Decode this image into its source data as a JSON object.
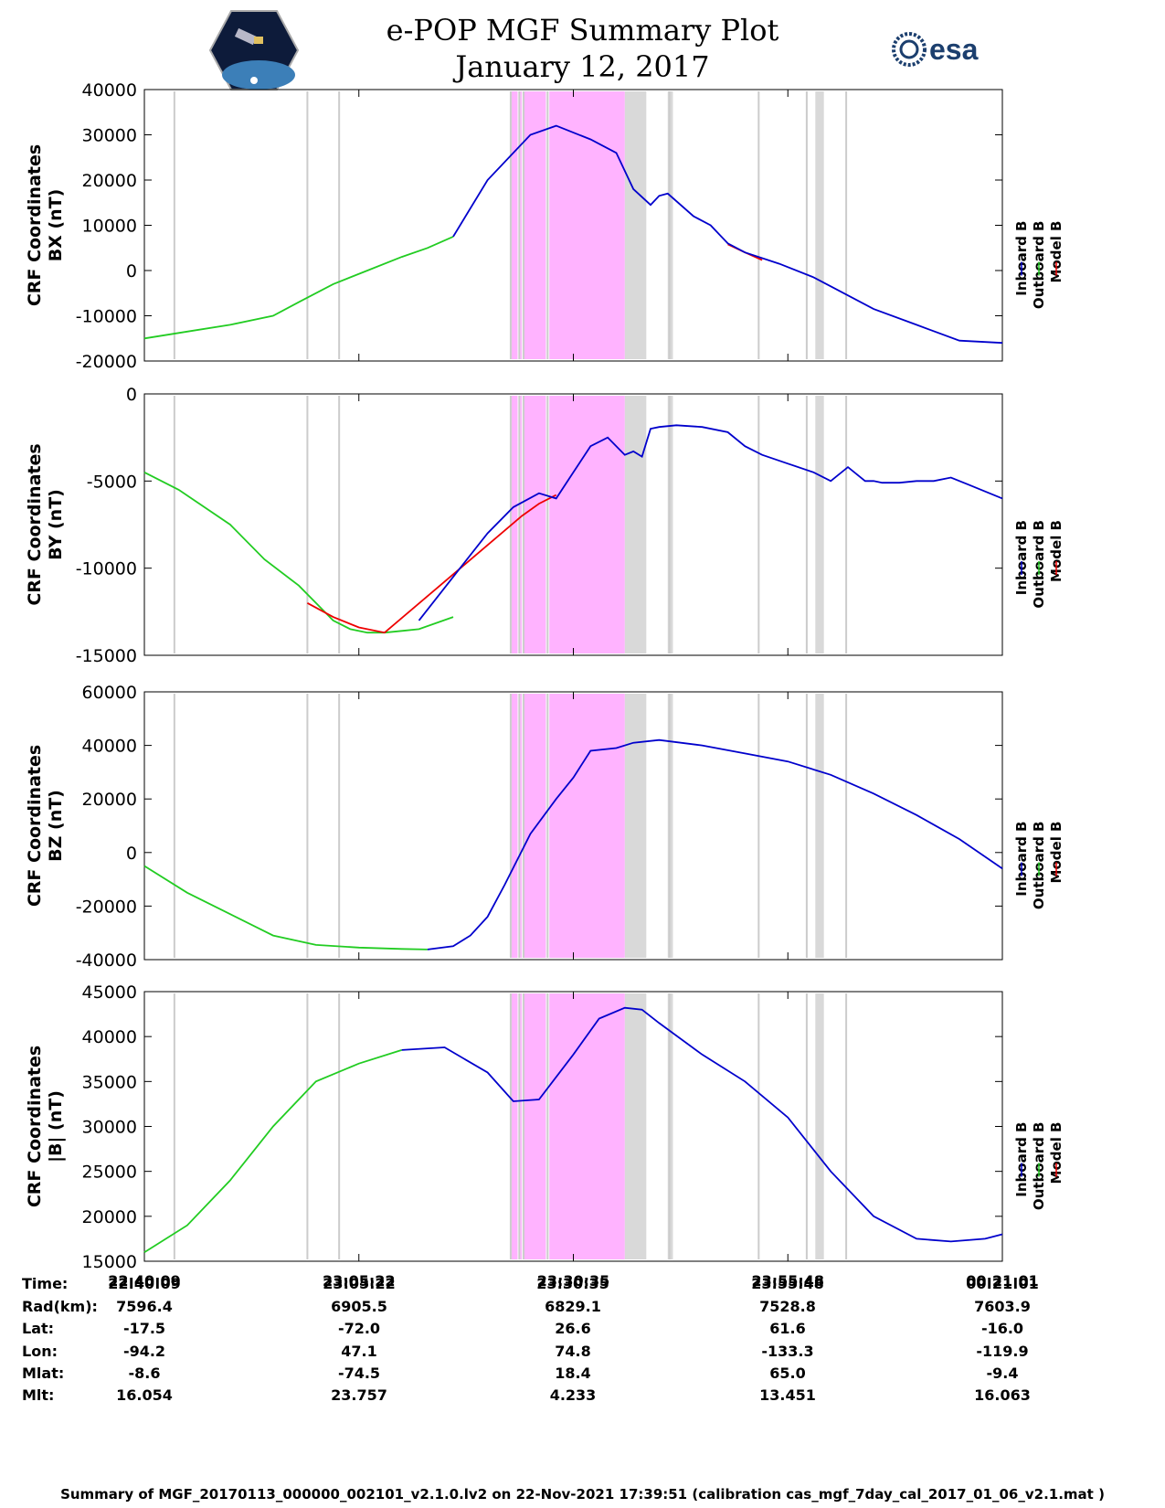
{
  "header": {
    "title": "e-POP MGF Summary Plot",
    "date": "January 12, 2017",
    "logo_left_icon": "cassiope-mission-logo",
    "logo_right_text": "esa"
  },
  "legend": {
    "labels": [
      "Inboard B",
      "Outboard B",
      "Model B"
    ],
    "colors": [
      "#0000cc",
      "#22cc22",
      "#ee0000"
    ]
  },
  "shading": {
    "magenta": "#ffb3ff",
    "gray": "#d9d9d9"
  },
  "chart_data": [
    {
      "type": "line",
      "ylabel_1": "CRF Coordinates",
      "ylabel_2": "BX (nT)",
      "ylim": [
        -20000,
        40000
      ],
      "yticks": [
        40000,
        30000,
        20000,
        10000,
        0,
        -10000,
        -20000
      ],
      "ytick_labels": [
        "40000",
        "30000",
        "20000",
        "10000",
        "0",
        "-10000",
        "-20000"
      ],
      "series": [
        {
          "name": "Outboard B",
          "x": [
            0,
            0.05,
            0.1,
            0.15,
            0.18,
            0.22,
            0.26,
            0.3,
            0.33,
            0.36
          ],
          "y": [
            -15000,
            -13500,
            -12000,
            -10000,
            -7000,
            -3000,
            0,
            3000,
            5000,
            7500
          ]
        },
        {
          "name": "Inboard B",
          "x": [
            0.36,
            0.4,
            0.45,
            0.48,
            0.52,
            0.55,
            0.57,
            0.59,
            0.6,
            0.61,
            0.64,
            0.66,
            0.68,
            0.7,
            0.74,
            0.78,
            0.8,
            0.85,
            0.9,
            0.95,
            1.0
          ],
          "y": [
            7500,
            20000,
            30000,
            32000,
            29000,
            26000,
            18000,
            14500,
            16500,
            17000,
            12000,
            10000,
            6000,
            4000,
            1500,
            -1500,
            -3500,
            -8500,
            -12000,
            -15500,
            -16000
          ]
        },
        {
          "name": "Model B",
          "x": [
            0.68,
            0.7,
            0.72
          ],
          "y": [
            5800,
            4000,
            2300
          ]
        }
      ]
    },
    {
      "type": "line",
      "ylabel_1": "CRF Coordinates",
      "ylabel_2": "BY (nT)",
      "ylim": [
        -15000,
        0
      ],
      "yticks": [
        0,
        -5000,
        -10000,
        -15000
      ],
      "ytick_labels": [
        "0",
        "-5000",
        "-10000",
        "-15000"
      ],
      "series": [
        {
          "name": "Outboard B",
          "x": [
            0,
            0.04,
            0.1,
            0.14,
            0.18,
            0.2,
            0.22,
            0.24,
            0.26,
            0.28,
            0.3,
            0.32,
            0.36
          ],
          "y": [
            -4500,
            -5500,
            -7500,
            -9500,
            -11000,
            -12000,
            -13000,
            -13500,
            -13700,
            -13700,
            -13600,
            -13500,
            -12800
          ]
        },
        {
          "name": "Model B",
          "x": [
            0.19,
            0.22,
            0.25,
            0.28,
            0.44,
            0.46,
            0.48
          ],
          "y": [
            -12000,
            -12800,
            -13400,
            -13700,
            -7000,
            -6300,
            -5800
          ]
        },
        {
          "name": "Inboard B",
          "x": [
            0.32,
            0.36,
            0.4,
            0.43,
            0.46,
            0.48,
            0.5,
            0.52,
            0.54,
            0.56,
            0.57,
            0.58,
            0.59,
            0.6,
            0.62,
            0.65,
            0.68,
            0.7,
            0.72,
            0.75,
            0.78,
            0.8,
            0.82,
            0.84,
            0.85,
            0.86,
            0.88,
            0.9,
            0.92,
            0.94,
            0.96,
            1.0
          ],
          "y": [
            -13000,
            -10500,
            -8000,
            -6500,
            -5700,
            -6000,
            -4500,
            -3000,
            -2500,
            -3500,
            -3300,
            -3600,
            -2000,
            -1900,
            -1800,
            -1900,
            -2200,
            -3000,
            -3500,
            -4000,
            -4500,
            -5000,
            -4200,
            -5000,
            -5000,
            -5100,
            -5100,
            -5000,
            -5000,
            -4800,
            -5200,
            -6000
          ]
        }
      ]
    },
    {
      "type": "line",
      "ylabel_1": "CRF Coordinates",
      "ylabel_2": "BZ (nT)",
      "ylim": [
        -40000,
        60000
      ],
      "yticks": [
        60000,
        40000,
        20000,
        0,
        -20000,
        -40000
      ],
      "ytick_labels": [
        "60000",
        "40000",
        "20000",
        "0",
        "-20000",
        "-40000"
      ],
      "series": [
        {
          "name": "Outboard B",
          "x": [
            0,
            0.05,
            0.1,
            0.15,
            0.2,
            0.25,
            0.3,
            0.33
          ],
          "y": [
            -5000,
            -15000,
            -23000,
            -31000,
            -34500,
            -35500,
            -36000,
            -36200
          ]
        },
        {
          "name": "Inboard B",
          "x": [
            0.33,
            0.36,
            0.38,
            0.4,
            0.42,
            0.45,
            0.48,
            0.5,
            0.52,
            0.55,
            0.57,
            0.6,
            0.65,
            0.7,
            0.75,
            0.8,
            0.85,
            0.9,
            0.95,
            1.0
          ],
          "y": [
            -36200,
            -35000,
            -31000,
            -24000,
            -12000,
            7000,
            20000,
            28000,
            38000,
            39000,
            41000,
            42000,
            40000,
            37000,
            34000,
            29000,
            22000,
            14000,
            5000,
            -6000
          ]
        }
      ]
    },
    {
      "type": "line",
      "ylabel_1": "CRF Coordinates",
      "ylabel_2": "|B| (nT)",
      "ylim": [
        15000,
        45000
      ],
      "yticks": [
        45000,
        40000,
        35000,
        30000,
        25000,
        20000,
        15000
      ],
      "ytick_labels": [
        "45000",
        "40000",
        "35000",
        "30000",
        "25000",
        "20000",
        "15000"
      ],
      "series": [
        {
          "name": "Outboard B",
          "x": [
            0,
            0.05,
            0.1,
            0.15,
            0.2,
            0.25,
            0.3
          ],
          "y": [
            16000,
            19000,
            24000,
            30000,
            35000,
            37000,
            38500
          ]
        },
        {
          "name": "Inboard B",
          "x": [
            0.3,
            0.35,
            0.4,
            0.43,
            0.46,
            0.5,
            0.53,
            0.56,
            0.58,
            0.6,
            0.65,
            0.7,
            0.75,
            0.8,
            0.85,
            0.9,
            0.94,
            0.98,
            1.0
          ],
          "y": [
            38500,
            38800,
            36000,
            32800,
            33000,
            38000,
            42000,
            43200,
            43000,
            41500,
            38000,
            35000,
            31000,
            25000,
            20000,
            17500,
            17200,
            17500,
            18000
          ]
        }
      ]
    }
  ],
  "shaded_regions": {
    "gray_thin_x": [
      0.035,
      0.19,
      0.227,
      0.427,
      0.437,
      0.442,
      0.47,
      0.612,
      0.716,
      0.772,
      0.818
    ],
    "gray_thick": [
      [
        0.56,
        0.585
      ],
      [
        0.61,
        0.616
      ],
      [
        0.782,
        0.792
      ]
    ],
    "magenta": [
      [
        0.428,
        0.435
      ],
      [
        0.438,
        0.44
      ],
      [
        0.443,
        0.468
      ],
      [
        0.472,
        0.56
      ]
    ]
  },
  "x_ticks": [
    "22:40:09",
    "23:05:22",
    "23:30:35",
    "23:55:48",
    "00:21:01"
  ],
  "table": {
    "labels": [
      "Time:",
      "Rad(km):",
      "Lat:",
      "Lon:",
      "Mlat:",
      "Mlt:"
    ],
    "columns": [
      [
        "22:40:09",
        "7596.4",
        "-17.5",
        "-94.2",
        "-8.6",
        "16.054"
      ],
      [
        "23:05:22",
        "6905.5",
        "-72.0",
        "47.1",
        "-74.5",
        "23.757"
      ],
      [
        "23:30:35",
        "6829.1",
        "26.6",
        "74.8",
        "18.4",
        "4.233"
      ],
      [
        "23:55:48",
        "7528.8",
        "61.6",
        "-133.3",
        "65.0",
        "13.451"
      ],
      [
        "00:21:01",
        "7603.9",
        "-16.0",
        "-119.9",
        "-9.4",
        "16.063"
      ]
    ]
  },
  "footer": "Summary of MGF_20170113_000000_002101_v2.1.0.lv2 on 22-Nov-2021 17:39:51 (calibration cas_mgf_7day_cal_2017_01_06_v2.1.mat )"
}
